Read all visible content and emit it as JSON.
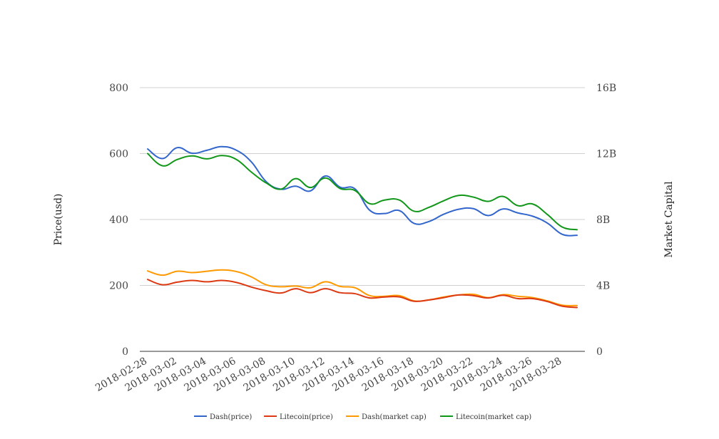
{
  "chart_data": {
    "type": "line",
    "x": [
      "2018-02-28",
      "2018-03-01",
      "2018-03-02",
      "2018-03-03",
      "2018-03-04",
      "2018-03-05",
      "2018-03-06",
      "2018-03-07",
      "2018-03-08",
      "2018-03-09",
      "2018-03-10",
      "2018-03-11",
      "2018-03-12",
      "2018-03-13",
      "2018-03-14",
      "2018-03-15",
      "2018-03-16",
      "2018-03-17",
      "2018-03-18",
      "2018-03-19",
      "2018-03-20",
      "2018-03-21",
      "2018-03-22",
      "2018-03-23",
      "2018-03-24",
      "2018-03-25",
      "2018-03-26",
      "2018-03-27",
      "2018-03-28",
      "2018-03-29"
    ],
    "x_tick_labels": [
      "2018-02-28",
      "2018-03-02",
      "2018-03-04",
      "2018-03-06",
      "2018-03-08",
      "2018-03-10",
      "2018-03-12",
      "2018-03-14",
      "2018-03-16",
      "2018-03-18",
      "2018-03-20",
      "2018-03-22",
      "2018-03-24",
      "2018-03-26",
      "2018-03-28"
    ],
    "ylabel_left": "Price(usd)",
    "ylabel_right": "Market Capital",
    "ylim_left": [
      0,
      800
    ],
    "ylim_right": [
      0,
      16000000000
    ],
    "y_ticks_left": [
      "0",
      "200",
      "400",
      "600",
      "800"
    ],
    "y_ticks_right": [
      "0",
      "4B",
      "8B",
      "12B",
      "16B"
    ],
    "grid": true,
    "legend_position": "bottom",
    "series": [
      {
        "name": "Dash(price)",
        "axis": "left",
        "color": "#3366cc",
        "values": [
          614,
          585,
          618,
          601,
          610,
          621,
          610,
          575,
          515,
          492,
          501,
          487,
          532,
          498,
          493,
          428,
          418,
          427,
          388,
          394,
          416,
          431,
          433,
          412,
          432,
          420,
          410,
          389,
          355,
          352
        ]
      },
      {
        "name": "Litecoin(price)",
        "axis": "left",
        "color": "#dc3912",
        "values": [
          218,
          202,
          210,
          215,
          211,
          215,
          209,
          195,
          184,
          177,
          190,
          178,
          190,
          178,
          175,
          162,
          165,
          165,
          152,
          156,
          163,
          171,
          169,
          162,
          170,
          160,
          160,
          151,
          137,
          133
        ]
      },
      {
        "name": "Dash(market cap)",
        "axis": "right",
        "color": "#ff9900",
        "values": [
          4880000000,
          4620000000,
          4860000000,
          4780000000,
          4860000000,
          4940000000,
          4840000000,
          4520000000,
          4040000000,
          3920000000,
          3960000000,
          3860000000,
          4220000000,
          3940000000,
          3860000000,
          3380000000,
          3340000000,
          3380000000,
          3060000000,
          3120000000,
          3300000000,
          3420000000,
          3460000000,
          3260000000,
          3440000000,
          3340000000,
          3260000000,
          3060000000,
          2800000000,
          2780000000
        ]
      },
      {
        "name": "Litecoin(market cap)",
        "axis": "right",
        "color": "#109618",
        "values": [
          12000000000,
          11260000000,
          11640000000,
          11860000000,
          11680000000,
          11880000000,
          11640000000,
          10880000000,
          10220000000,
          9840000000,
          10480000000,
          9940000000,
          10520000000,
          9880000000,
          9760000000,
          8960000000,
          9180000000,
          9180000000,
          8500000000,
          8740000000,
          9140000000,
          9460000000,
          9360000000,
          9100000000,
          9400000000,
          8840000000,
          8940000000,
          8300000000,
          7540000000,
          7380000000
        ]
      }
    ]
  }
}
